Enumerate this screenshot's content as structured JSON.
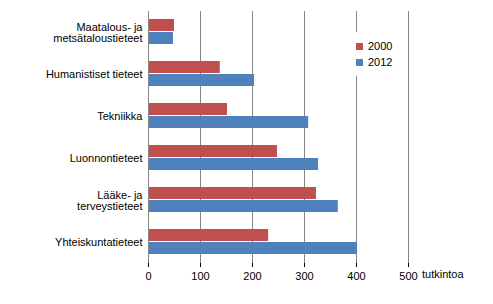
{
  "chart_data": {
    "type": "bar",
    "orientation": "horizontal",
    "categories": [
      "Maatalous- ja metsätaloustieteet",
      "Humanistiset tieteet",
      "Tekniikka",
      "Luonnontieteet",
      "Lääke- ja terveystieteet",
      "Yhteiskuntatieteet"
    ],
    "series": [
      {
        "name": "2000",
        "color": "#c0504d",
        "values": [
          50,
          138,
          152,
          248,
          323,
          231
        ]
      },
      {
        "name": "2012",
        "color": "#4f81bd",
        "values": [
          48,
          204,
          308,
          327,
          365,
          402
        ]
      }
    ],
    "x_label": "tutkintoa",
    "xlim": [
      0,
      500
    ],
    "xticks": [
      0,
      100,
      200,
      300,
      400,
      500
    ],
    "grid": true,
    "legend": "top-right"
  }
}
